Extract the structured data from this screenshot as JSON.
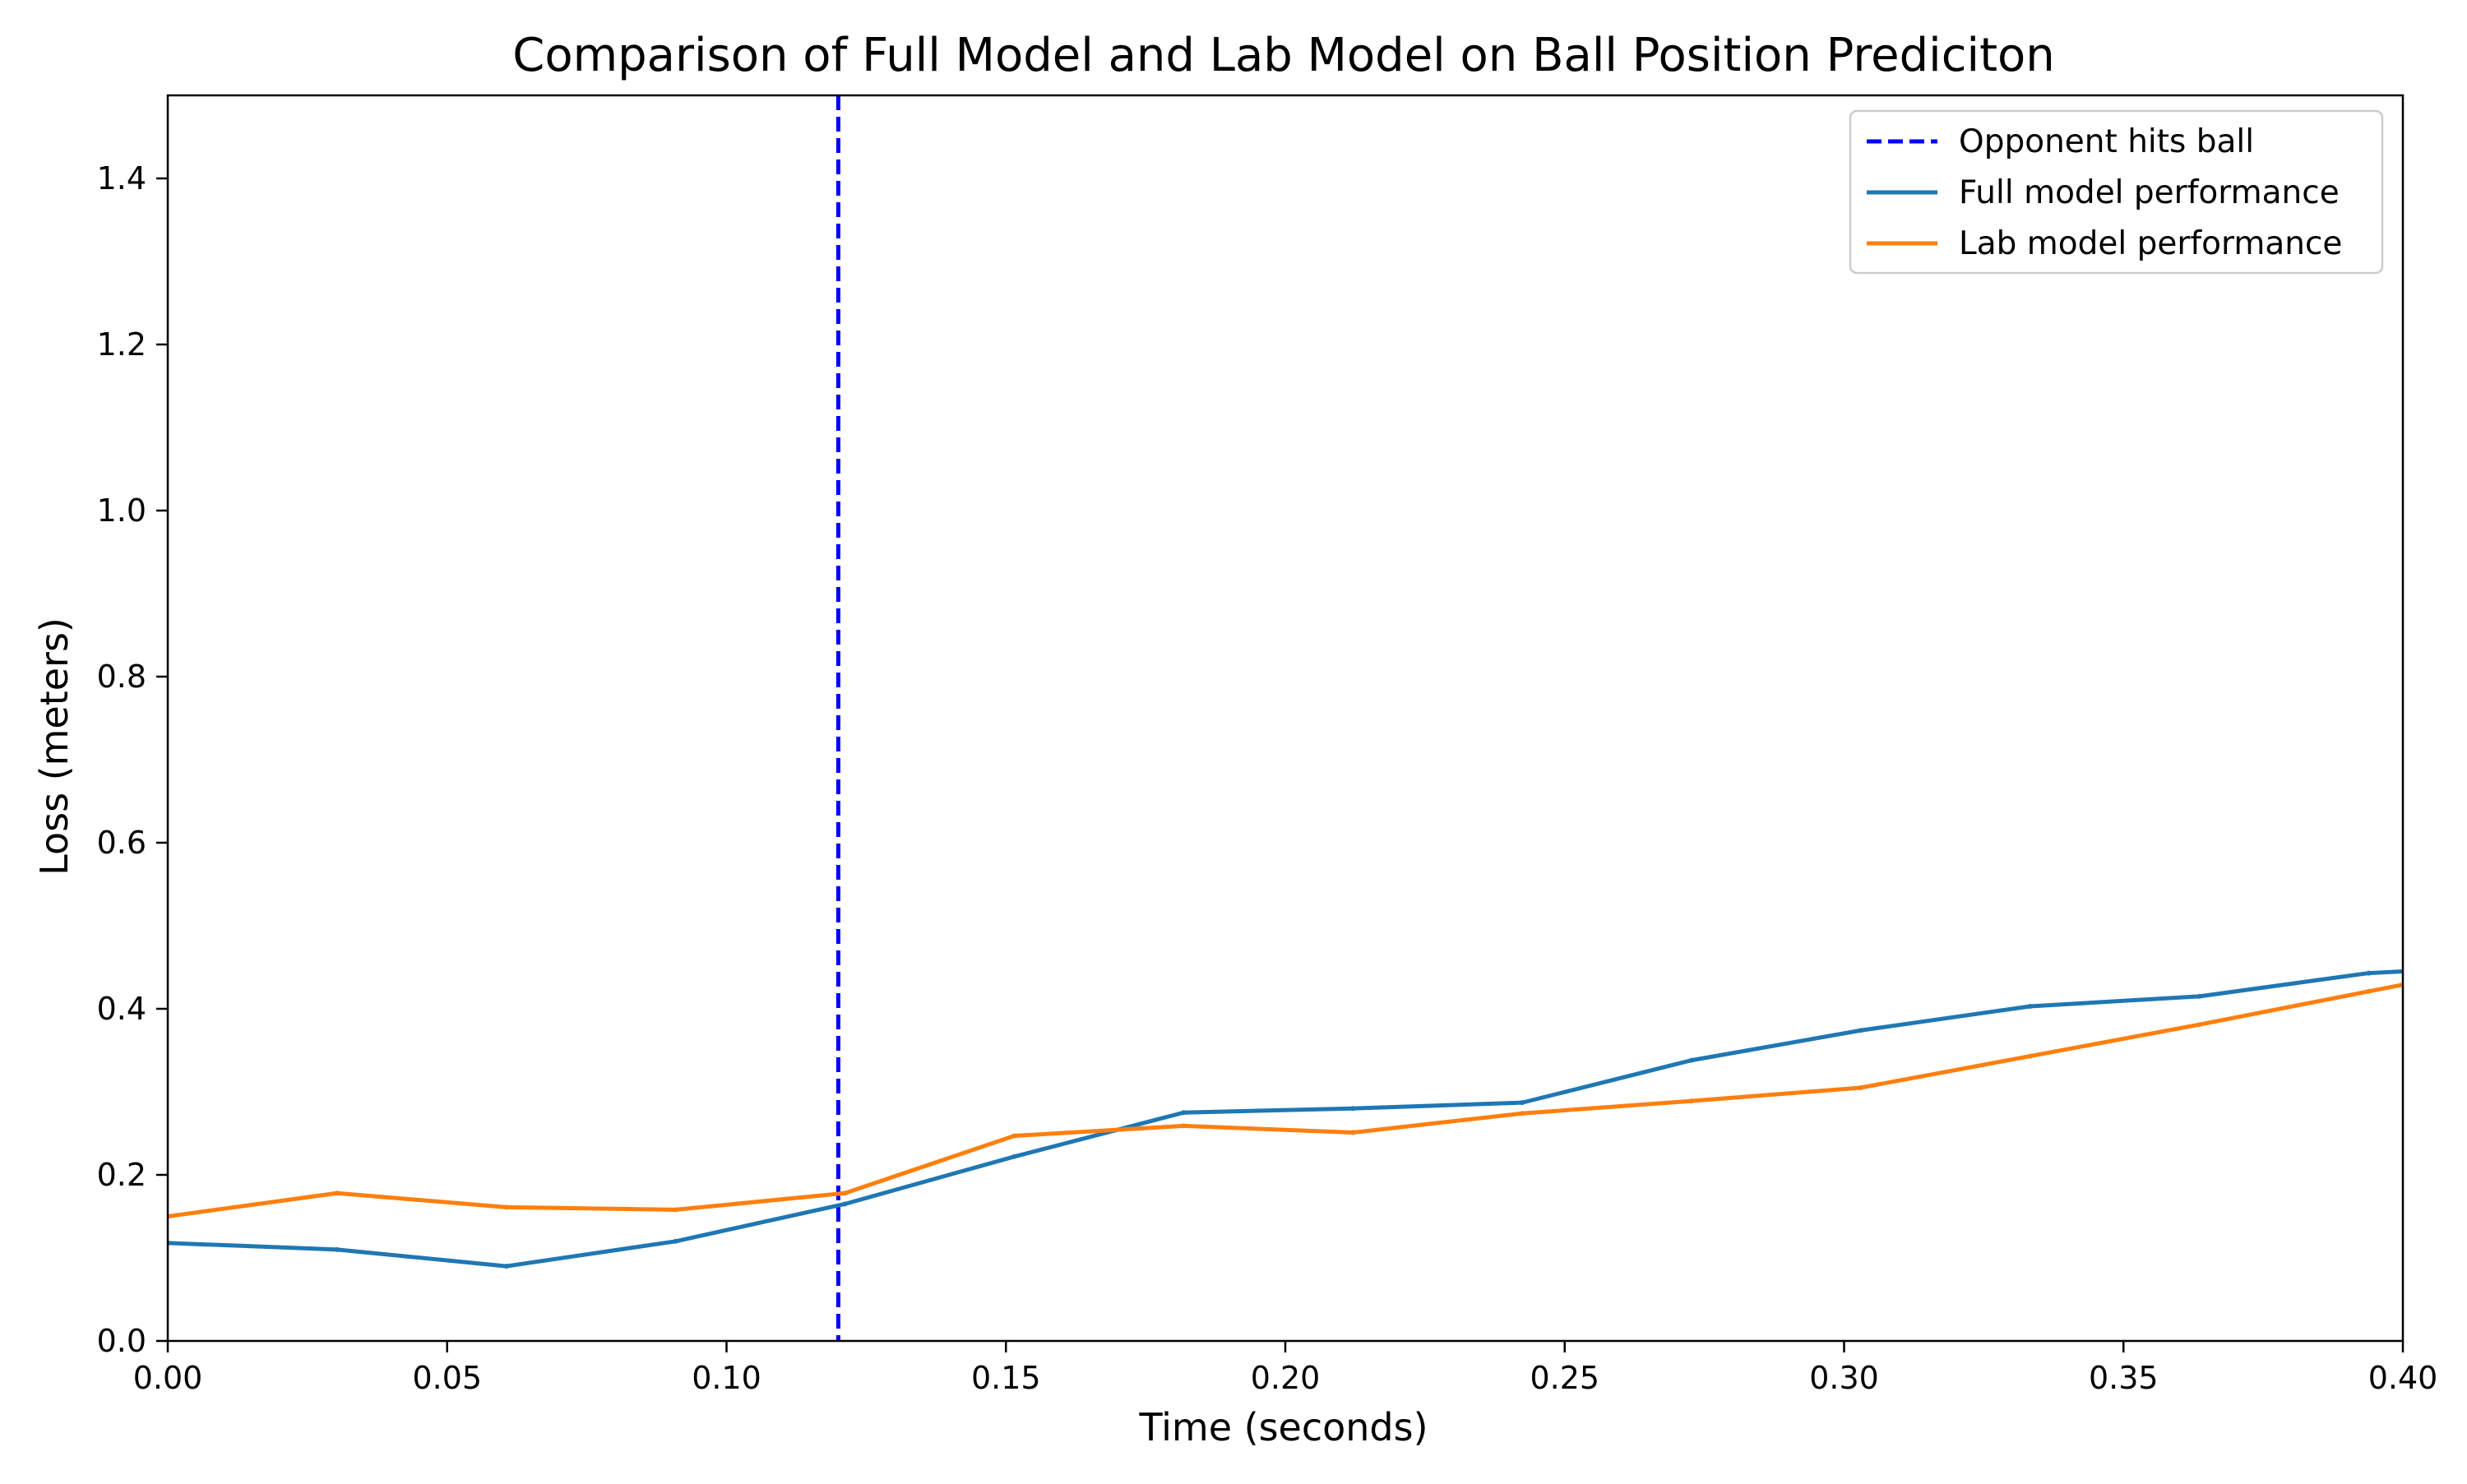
{
  "chart_data": {
    "type": "line",
    "title": "Comparison of Full Model and Lab Model on Ball Position Prediciton",
    "xlabel": "Time (seconds)",
    "ylabel": "Loss (meters)",
    "xlim": [
      0.0,
      0.4
    ],
    "ylim": [
      0.0,
      1.5
    ],
    "x_ticks": [
      "0.00",
      "0.05",
      "0.10",
      "0.15",
      "0.20",
      "0.25",
      "0.30",
      "0.35",
      "0.40"
    ],
    "y_ticks": [
      "0.0",
      "0.2",
      "0.4",
      "0.6",
      "0.8",
      "1.0",
      "1.2",
      "1.4"
    ],
    "grid": false,
    "legend_position": "top-right",
    "vline": {
      "name": "Opponent hits ball",
      "x": 0.12,
      "color": "#0000ff",
      "style": "dashed"
    },
    "series": [
      {
        "name": "Full model performance",
        "color": "#1f77b4",
        "x": [
          0.0,
          0.0303,
          0.0606,
          0.0909,
          0.1212,
          0.1515,
          0.1818,
          0.2121,
          0.2424,
          0.2727,
          0.303,
          0.3333,
          0.3636,
          0.3939,
          0.4
        ],
        "y": [
          0.118,
          0.11,
          0.09,
          0.12,
          0.165,
          0.222,
          0.275,
          0.28,
          0.287,
          0.338,
          0.374,
          0.403,
          0.415,
          0.443,
          0.445
        ]
      },
      {
        "name": "Lab model performance",
        "color": "#ff7f0e",
        "x": [
          0.0,
          0.0303,
          0.0606,
          0.0909,
          0.1212,
          0.1515,
          0.1818,
          0.2121,
          0.2424,
          0.2727,
          0.303,
          0.3333,
          0.3636,
          0.3939,
          0.4
        ],
        "y": [
          0.15,
          0.178,
          0.161,
          0.158,
          0.178,
          0.247,
          0.259,
          0.251,
          0.274,
          0.289,
          0.305,
          0.343,
          0.381,
          0.421,
          0.429
        ]
      }
    ]
  }
}
